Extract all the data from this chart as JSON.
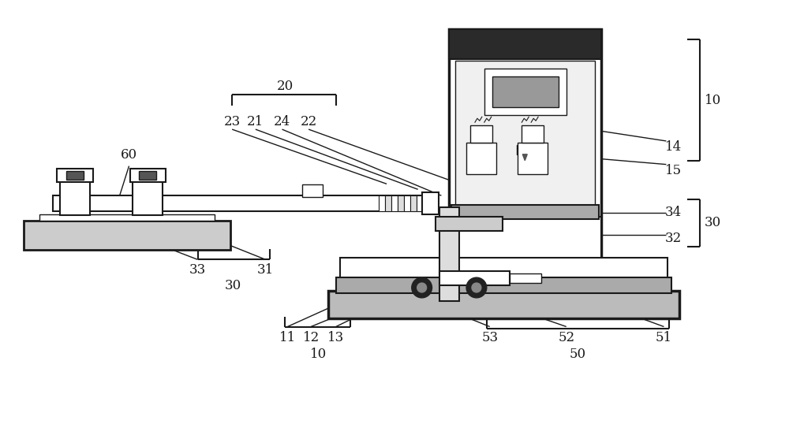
{
  "bg_color": "#ffffff",
  "lc": "#1a1a1a",
  "gray1": "#888888",
  "gray2": "#aaaaaa",
  "gray3": "#cccccc",
  "gray4": "#dddddd",
  "dark": "#333333",
  "lw_thick": 2.0,
  "lw_main": 1.5,
  "lw_thin": 1.0,
  "lw_hair": 0.8
}
